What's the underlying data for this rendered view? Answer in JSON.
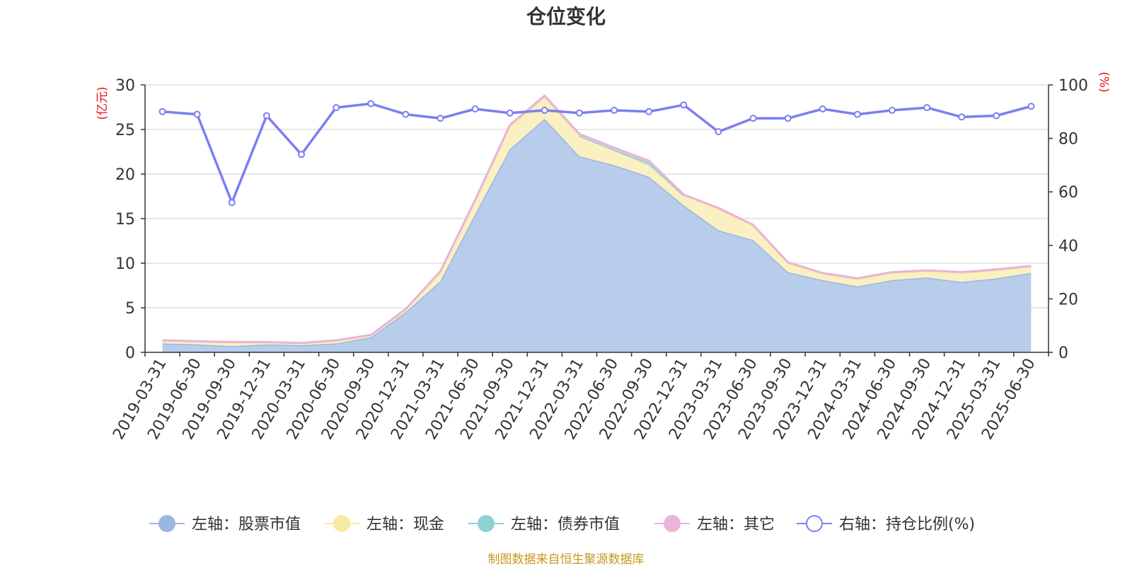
{
  "chart_data": {
    "type": "area",
    "title": "仓位变化",
    "left_axis_unit": "(亿元)",
    "right_axis_unit": "(%)",
    "ylim_left": [
      0,
      30
    ],
    "yticks_left": [
      "0",
      "5",
      "10",
      "15",
      "20",
      "25",
      "30"
    ],
    "ylim_right": [
      0,
      100
    ],
    "yticks_right": [
      "0",
      "20",
      "40",
      "60",
      "80",
      "100"
    ],
    "grid": true,
    "legend_position": "bottom",
    "categories": [
      "2019-03-31",
      "2019-06-30",
      "2019-09-30",
      "2019-12-31",
      "2020-03-31",
      "2020-06-30",
      "2020-09-30",
      "2020-12-31",
      "2021-03-31",
      "2021-06-30",
      "2021-09-30",
      "2021-12-31",
      "2022-03-31",
      "2022-06-30",
      "2022-09-30",
      "2022-12-31",
      "2023-03-31",
      "2023-06-30",
      "2023-09-30",
      "2023-12-31",
      "2024-03-31",
      "2024-06-30",
      "2024-09-30",
      "2024-12-31",
      "2025-03-31",
      "2025-06-30"
    ],
    "series": [
      {
        "name": "左轴：股票市值",
        "axis": "left",
        "color": "#9bb7e0",
        "fill": "#b7cdeb",
        "values": [
          1.0,
          0.9,
          0.7,
          0.9,
          0.8,
          1.0,
          1.7,
          4.5,
          8.0,
          15.5,
          22.8,
          26.2,
          22.0,
          21.0,
          19.7,
          16.5,
          13.7,
          12.6,
          9.0,
          8.1,
          7.4,
          8.1,
          8.4,
          7.9,
          8.3,
          8.9
        ]
      },
      {
        "name": "左轴：现金",
        "axis": "left",
        "color": "#f7e9a0",
        "fill": "#fbf0c2",
        "values": [
          0.3,
          0.3,
          0.4,
          0.2,
          0.2,
          0.3,
          0.2,
          0.3,
          1.0,
          1.5,
          2.6,
          2.4,
          2.3,
          1.6,
          1.3,
          1.1,
          2.4,
          1.6,
          1.0,
          0.7,
          0.8,
          0.8,
          0.7,
          1.0,
          0.9,
          0.7
        ]
      },
      {
        "name": "左轴：债券市值",
        "axis": "left",
        "color": "#8fd0d4",
        "fill": "#a5dcdf",
        "values": [
          0,
          0,
          0,
          0,
          0,
          0,
          0,
          0,
          0,
          0,
          0,
          0,
          0,
          0.15,
          0.3,
          0,
          0,
          0,
          0,
          0,
          0,
          0,
          0,
          0,
          0,
          0
        ]
      },
      {
        "name": "左轴：其它",
        "axis": "left",
        "color": "#e6b4dc",
        "fill": "#f0cfe9",
        "values": [
          0.05,
          0.05,
          0.05,
          0.05,
          0.05,
          0.05,
          0.05,
          0.05,
          0.1,
          0.1,
          0.1,
          0.2,
          0.2,
          0.2,
          0.2,
          0.1,
          0.1,
          0.1,
          0.1,
          0.1,
          0.1,
          0.1,
          0.1,
          0.1,
          0.1,
          0.1
        ]
      },
      {
        "name": "右轴：持仓比例(%)",
        "axis": "right",
        "color": "#7b7ff0",
        "values": [
          90.0,
          89.0,
          56.0,
          88.5,
          74.0,
          91.5,
          93.0,
          89.0,
          87.5,
          91.0,
          89.5,
          90.5,
          89.5,
          90.5,
          90.0,
          92.5,
          82.5,
          87.5,
          87.5,
          91.0,
          89.0,
          90.5,
          91.5,
          88.0,
          88.5,
          92.0
        ]
      }
    ],
    "source_note": "制图数据来自恒生聚源数据库"
  }
}
